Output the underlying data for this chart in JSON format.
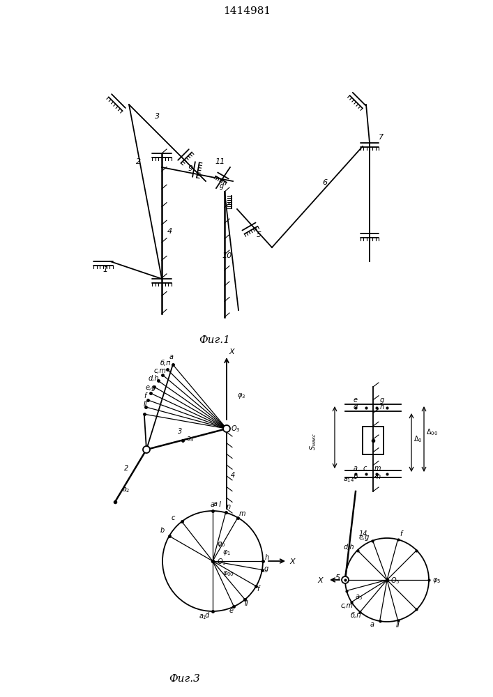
{
  "title": "1414981",
  "fig1_label": "Фиг.1",
  "fig3_label": "Фиг.3",
  "bg_color": "#ffffff",
  "line_color": "#000000",
  "font_size": 8,
  "title_font_size": 11
}
